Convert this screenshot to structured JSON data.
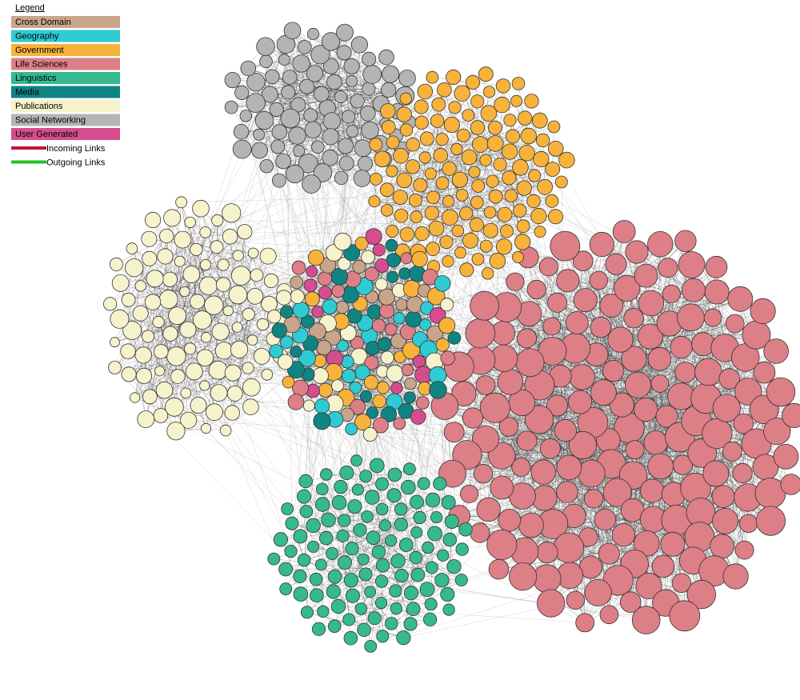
{
  "legend": {
    "title": "Legend",
    "items": [
      {
        "label": "Cross Domain",
        "color": "#c8a48a"
      },
      {
        "label": "Geography",
        "color": "#2ecbd3"
      },
      {
        "label": "Government",
        "color": "#f7b23b"
      },
      {
        "label": "Life Sciences",
        "color": "#dc7f86"
      },
      {
        "label": "Linguistics",
        "color": "#36b98f"
      },
      {
        "label": "Media",
        "color": "#0f8583"
      },
      {
        "label": "Publications",
        "color": "#f6f2cc"
      },
      {
        "label": "Social Networking",
        "color": "#b4b4b4"
      },
      {
        "label": "User Generated",
        "color": "#d64d8f"
      }
    ],
    "links": [
      {
        "label": "Incoming Links",
        "color": "#c0143c"
      },
      {
        "label": "Outgoing Links",
        "color": "#22c022"
      }
    ]
  }
}
